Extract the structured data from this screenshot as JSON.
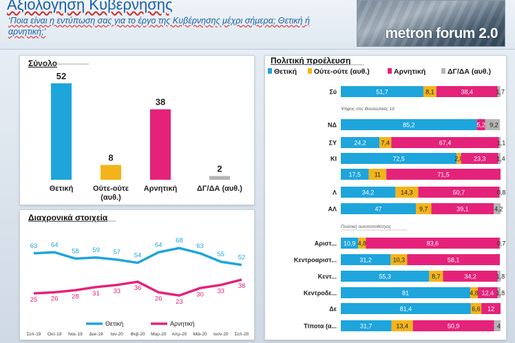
{
  "header": {
    "title": "Αξιολόγηση Κυβέρνησης",
    "subtitle": "‘Ποια είναι η εντύπωση σας για το έργο της Κυβέρνησης μέχρι σήμερα; Θετική ή αρνητική;’",
    "brand": "metron forum 2.0"
  },
  "colors": {
    "positive": "#1ea5dc",
    "neutral": "#f3b41b",
    "negative": "#e5227a",
    "dk": "#b4b4b4"
  },
  "chart_data": [
    {
      "type": "bar",
      "title": "Σύνολο",
      "categories": [
        "Θετική",
        "Ούτε-ούτε (αυθ.)",
        "Αρνητική",
        "ΔΓ/ΔΑ (αυθ.)"
      ],
      "values": [
        52,
        8,
        38,
        2
      ],
      "colors": [
        "#1ea5dc",
        "#f3b41b",
        "#e5227a",
        "#b4b4b4"
      ]
    },
    {
      "type": "line",
      "title": "Διαχρονικά στοιχεία",
      "categories": [
        "Σεπ-19",
        "Οκτ-19",
        "Νοε-19",
        "Δεκ-19",
        "Ιαν-20",
        "Φεβ-20",
        "Μαρ-20",
        "Απρ-20",
        "Μάι-20",
        "Ιούν-20",
        "Σεπ-20"
      ],
      "series": [
        {
          "name": "Θετική",
          "color": "#1ea5dc",
          "values": [
            63,
            64,
            58,
            59,
            57,
            54,
            64,
            68,
            63,
            55,
            52
          ]
        },
        {
          "name": "Αρνητική",
          "color": "#e5227a",
          "values": [
            25,
            26,
            28,
            31,
            33,
            36,
            26,
            23,
            30,
            33,
            38
          ]
        }
      ],
      "legend": "bottom"
    },
    {
      "type": "bar",
      "orientation": "horizontal-stacked",
      "title": "Πολιτική προέλευση",
      "legend": [
        "Θετική",
        "Ούτε-ούτε (αυθ.)",
        "Αρνητική",
        "ΔΓ/ΔΑ (αυθ.)"
      ],
      "group_labels": [
        "Ψήφος στις Βουλευτικές 19",
        "Πολιτική αυτοτοποθέτηση"
      ],
      "rows": [
        {
          "label": "Σύ",
          "values": [
            51.7,
            8.1,
            38.4,
            1.7
          ],
          "labels": [
            "51,7",
            "8,1",
            "38,4",
            "1,7"
          ]
        },
        {
          "label": "ΝΔ",
          "values": [
            85.2,
            0,
            5.2,
            9.2
          ],
          "labels": [
            "85,2",
            "",
            "5,2",
            "9,2"
          ]
        },
        {
          "label": "ΣΥ",
          "values": [
            24.2,
            7.4,
            67.4,
            1.1
          ],
          "labels": [
            "24,2",
            "7,4",
            "67,4",
            "1,1"
          ]
        },
        {
          "label": "ΚΙ",
          "values": [
            72.5,
            2.8,
            23.3,
            1.4
          ],
          "labels": [
            "72,5",
            "2,8",
            "23,3",
            "1,4"
          ]
        },
        {
          "label": "",
          "values": [
            17.5,
            11,
            71.5,
            0
          ],
          "labels": [
            "17,5",
            "11",
            "71,5",
            ""
          ]
        },
        {
          "label": "Λ",
          "values": [
            34.2,
            14.3,
            50.7,
            0.8
          ],
          "labels": [
            "34,2",
            "14,3",
            "50,7",
            "0,8"
          ]
        },
        {
          "label": "ΑΛ",
          "values": [
            47,
            9.7,
            39.1,
            4.2
          ],
          "labels": [
            "47",
            "9,7",
            "39,1",
            "4,2"
          ]
        },
        {
          "label": "Αριστ...",
          "values": [
            10.9,
            4.8,
            83.6,
            0.7
          ],
          "labels": [
            "10,9",
            "4,8",
            "83,6",
            "0,7"
          ]
        },
        {
          "label": "Κεντροαριστ...",
          "values": [
            31.2,
            10.3,
            58.1,
            0
          ],
          "labels": [
            "31,2",
            "10,3",
            "58,1",
            ""
          ]
        },
        {
          "label": "Κεντ...",
          "values": [
            55.3,
            8.7,
            34.2,
            1.8
          ],
          "labels": [
            "55,3",
            "8,7",
            "34,2",
            "1,8"
          ]
        },
        {
          "label": "Κεντροδε...",
          "values": [
            81,
            4.8,
            12.4,
            1.8
          ],
          "labels": [
            "81",
            "4,8",
            "12,4",
            "1,8"
          ]
        },
        {
          "label": "Δε",
          "values": [
            81.4,
            6.6,
            12,
            0
          ],
          "labels": [
            "81,4",
            "6,6",
            "12",
            ""
          ]
        },
        {
          "label": "Τίποτα (α...",
          "values": [
            31.7,
            13.4,
            50.9,
            4
          ],
          "labels": [
            "31,7",
            "13,4",
            "50,9",
            "4"
          ]
        }
      ]
    }
  ]
}
